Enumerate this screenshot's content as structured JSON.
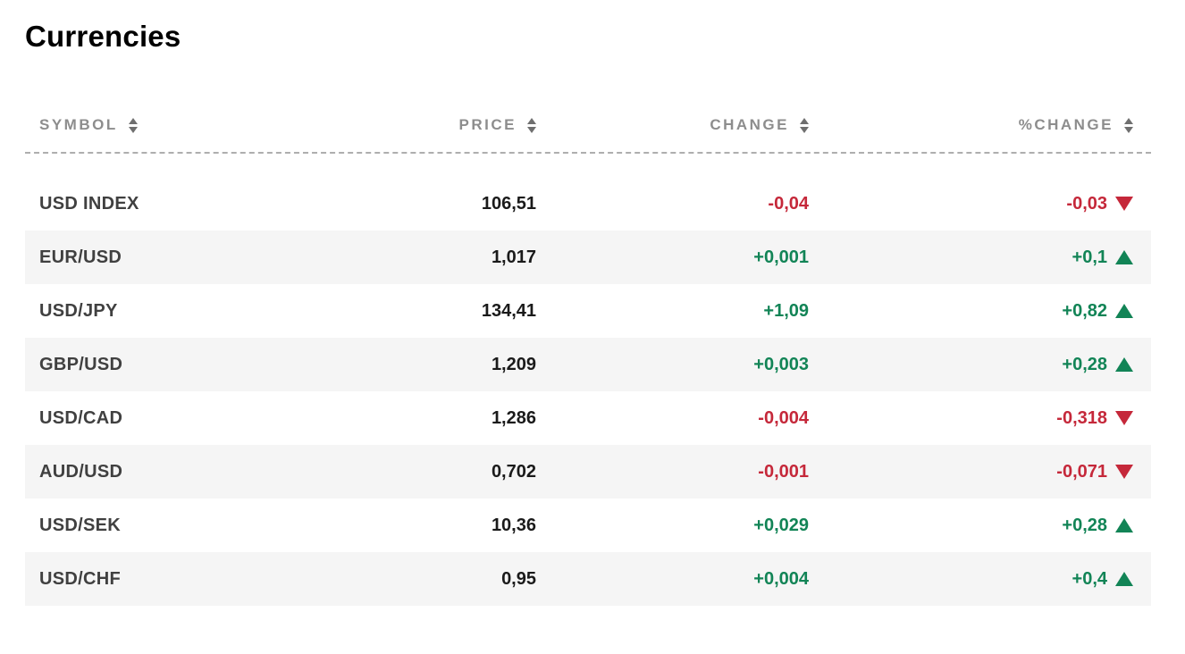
{
  "page_title": "Currencies",
  "colors": {
    "positive": "#128456",
    "negative": "#c5283a",
    "header_text": "#8d8d8d",
    "symbol_text": "#404040",
    "price_text": "#1a1a1a",
    "row_alt_background": "#f5f5f5"
  },
  "table": {
    "columns": [
      {
        "label": "SYMBOL",
        "sortable": true
      },
      {
        "label": "PRICE",
        "sortable": true
      },
      {
        "label": "CHANGE",
        "sortable": true
      },
      {
        "label": "%CHANGE",
        "sortable": true
      }
    ],
    "rows": [
      {
        "symbol": "USD INDEX",
        "price": "106,51",
        "change": "-0,04",
        "pct_change": "-0,03",
        "direction": "down"
      },
      {
        "symbol": "EUR/USD",
        "price": "1,017",
        "change": "+0,001",
        "pct_change": "+0,1",
        "direction": "up"
      },
      {
        "symbol": "USD/JPY",
        "price": "134,41",
        "change": "+1,09",
        "pct_change": "+0,82",
        "direction": "up"
      },
      {
        "symbol": "GBP/USD",
        "price": "1,209",
        "change": "+0,003",
        "pct_change": "+0,28",
        "direction": "up"
      },
      {
        "symbol": "USD/CAD",
        "price": "1,286",
        "change": "-0,004",
        "pct_change": "-0,318",
        "direction": "down"
      },
      {
        "symbol": "AUD/USD",
        "price": "0,702",
        "change": "-0,001",
        "pct_change": "-0,071",
        "direction": "down"
      },
      {
        "symbol": "USD/SEK",
        "price": "10,36",
        "change": "+0,029",
        "pct_change": "+0,28",
        "direction": "up"
      },
      {
        "symbol": "USD/CHF",
        "price": "0,95",
        "change": "+0,004",
        "pct_change": "+0,4",
        "direction": "up"
      }
    ]
  }
}
